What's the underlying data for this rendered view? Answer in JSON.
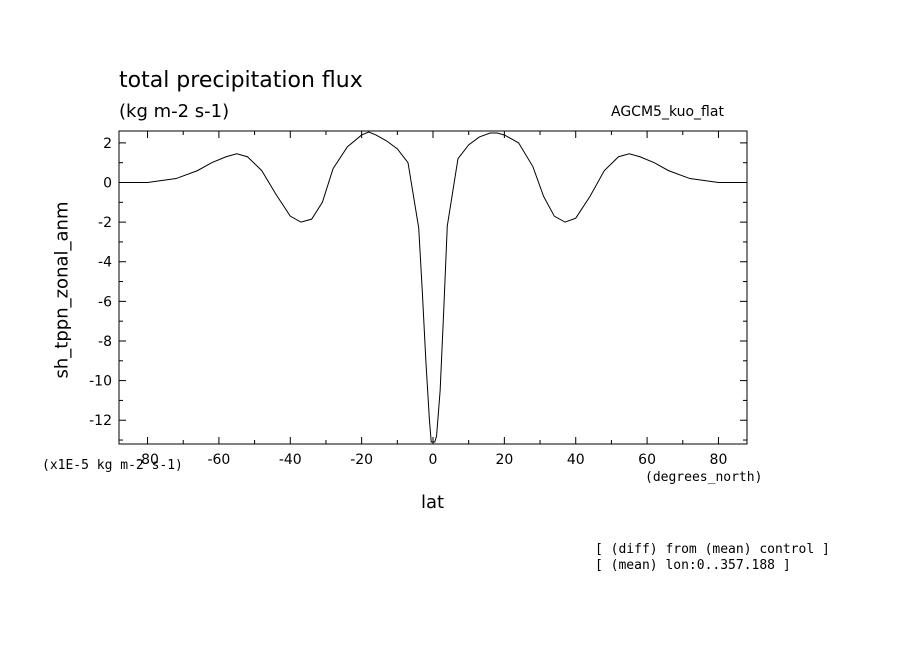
{
  "header": {
    "title": "total precipitation flux",
    "units": "(kg m-2 s-1)",
    "run_name": "AGCM5_kuo_flat"
  },
  "axes": {
    "ylabel": "sh_tppn_zonal_anm",
    "xlabel": "lat",
    "y_scale_note": "(x1E-5 kg m-2 s-1)",
    "x_units": "(degrees_north)"
  },
  "notes": {
    "line1": "[ (diff) from (mean) control ]",
    "line2": "[ (mean) lon:0..357.188 ]"
  },
  "chart_data": {
    "type": "line",
    "title": "total precipitation flux",
    "xlabel": "lat",
    "ylabel": "sh_tppn_zonal_anm",
    "xlim": [
      -88,
      88
    ],
    "ylim": [
      -13.2,
      2.6
    ],
    "xticks": [
      -80,
      -60,
      -40,
      -20,
      0,
      20,
      40,
      60,
      80
    ],
    "xtick_labels": [
      "-80",
      "-60",
      "-40",
      "-20",
      "0",
      "20",
      "40",
      "60",
      "80"
    ],
    "yticks": [
      2,
      0,
      -2,
      -4,
      -6,
      -8,
      -10,
      -12
    ],
    "ytick_labels": [
      "2",
      "0",
      "-2",
      "-4",
      "-6",
      "-8",
      "-10",
      "-12"
    ],
    "grid": false,
    "series": [
      {
        "x": [
          -88,
          -80,
          -72,
          -66,
          -62,
          -58,
          -55,
          -52,
          -48,
          -44,
          -40,
          -37,
          -34,
          -31,
          -28,
          -24,
          -20,
          -18,
          -16,
          -13,
          -10,
          -7,
          -4,
          -3,
          -2,
          -1,
          -0.5,
          0.5,
          1,
          2,
          3,
          4,
          7,
          10,
          13,
          16,
          18,
          20,
          24,
          28,
          31,
          34,
          37,
          40,
          44,
          48,
          52,
          55,
          58,
          62,
          66,
          72,
          80,
          88
        ],
        "values": [
          0,
          0,
          0.2,
          0.6,
          1.0,
          1.3,
          1.45,
          1.3,
          0.6,
          -0.6,
          -1.7,
          -2.0,
          -1.85,
          -1.0,
          0.7,
          1.8,
          2.4,
          2.55,
          2.4,
          2.1,
          1.7,
          1.0,
          -2.3,
          -5.5,
          -9.0,
          -12.0,
          -13.1,
          -13.1,
          -12.8,
          -10.5,
          -6.5,
          -2.2,
          1.2,
          1.9,
          2.3,
          2.5,
          2.5,
          2.4,
          2.0,
          0.8,
          -0.7,
          -1.7,
          -2.0,
          -1.8,
          -0.7,
          0.6,
          1.3,
          1.45,
          1.3,
          1.0,
          0.6,
          0.2,
          0,
          0
        ]
      }
    ]
  }
}
